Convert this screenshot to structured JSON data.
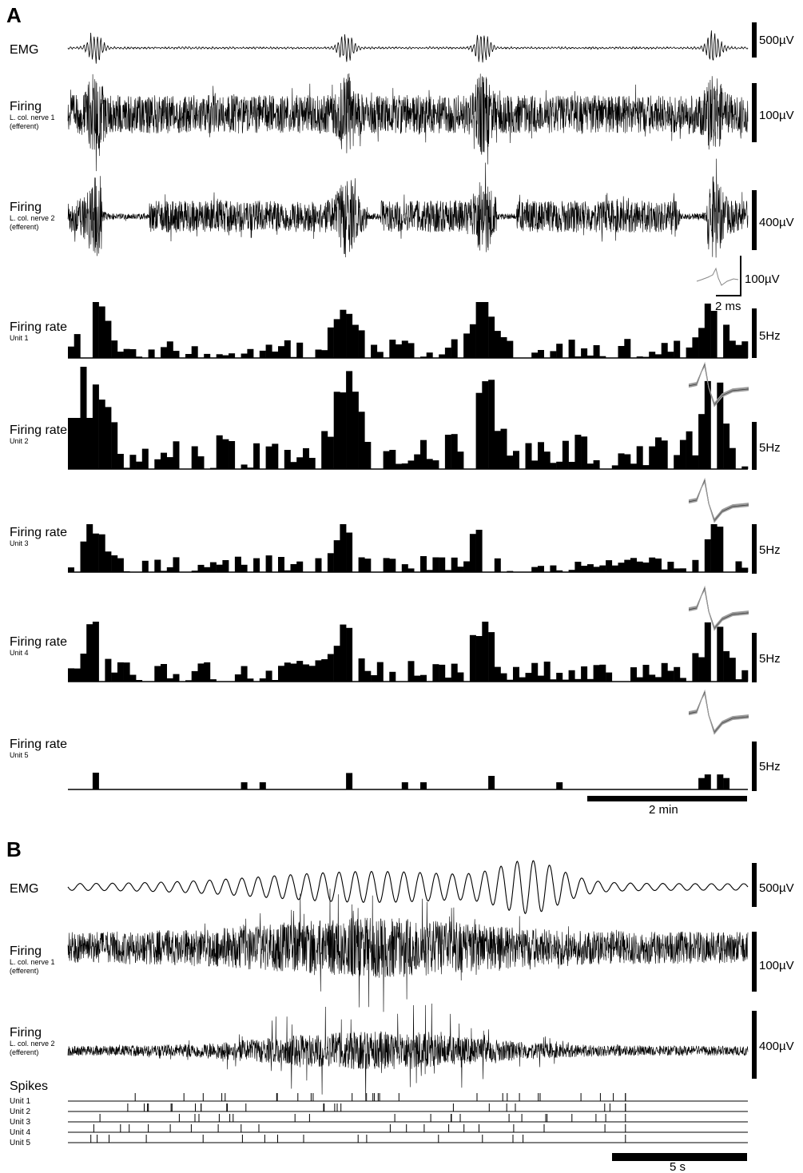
{
  "panels": [
    {
      "letter": "A",
      "traces": [
        {
          "name": "EMG",
          "sub": [],
          "scale": "500µV",
          "bursts": [
            0.04,
            0.41,
            0.61,
            0.95
          ]
        },
        {
          "name": "Firing",
          "sub": [
            "L. col. nerve 1",
            "(efferent)"
          ],
          "scale": "100µV",
          "bursts": [
            0.04,
            0.41,
            0.61,
            0.95
          ]
        },
        {
          "name": "Firing",
          "sub": [
            "L. col. nerve 2",
            "(efferent)"
          ],
          "scale": "400µV",
          "bursts": [
            0.04,
            0.41,
            0.61,
            0.95
          ]
        }
      ],
      "waveform_scale": {
        "amplitude": "100µV",
        "time": "2 ms"
      },
      "rate_units": [
        {
          "name": "Firing rate",
          "sub": "Unit 1",
          "scale": "5Hz"
        },
        {
          "name": "Firing rate",
          "sub": "Unit 2",
          "scale": "5Hz"
        },
        {
          "name": "Firing rate",
          "sub": "Unit 3",
          "scale": "5Hz"
        },
        {
          "name": "Firing rate",
          "sub": "Unit 4",
          "scale": "5Hz"
        },
        {
          "name": "Firing rate",
          "sub": "Unit 5",
          "scale": "5Hz"
        }
      ],
      "time_scale": "2 min"
    },
    {
      "letter": "B",
      "traces": [
        {
          "name": "EMG",
          "sub": [],
          "scale": "500µV"
        },
        {
          "name": "Firing",
          "sub": [
            "L. col. nerve 1",
            "(efferent)"
          ],
          "scale": "100µV"
        },
        {
          "name": "Firing",
          "sub": [
            "L. col. nerve 2",
            "(efferent)"
          ],
          "scale": "400µV"
        }
      ],
      "spikes_title": "Spikes",
      "spike_units": [
        "Unit 1",
        "Unit 2",
        "Unit 3",
        "Unit 4",
        "Unit 5"
      ],
      "time_scale": "5 s"
    }
  ],
  "colors": {
    "trace": "#000000",
    "waveform": "#777777",
    "background": "#ffffff"
  }
}
